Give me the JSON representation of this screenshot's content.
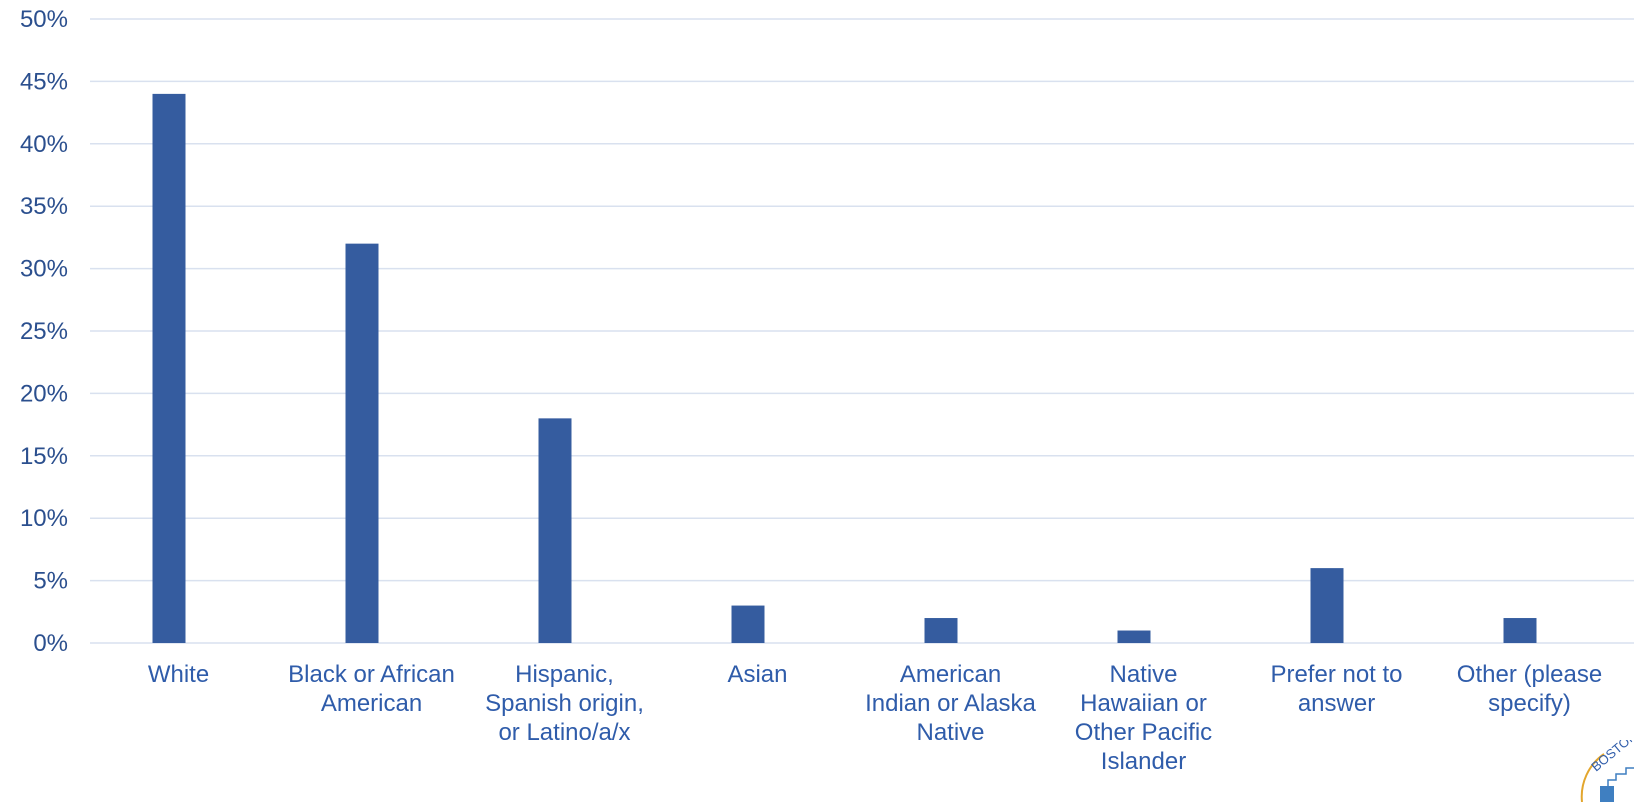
{
  "colors": {
    "bar": "#355c9f",
    "grid": "#d9e1ef",
    "tick_text": "#2b4f8e",
    "label_text": "#2f5caa",
    "logo_ring": "#e3a62d",
    "logo_mark": "#3f7fc1"
  },
  "logo": {
    "text": "BOSTON"
  },
  "chart_data": {
    "type": "bar",
    "categories": [
      [
        "White"
      ],
      [
        "Black or African",
        "American"
      ],
      [
        "Hispanic,",
        "Spanish origin,",
        "or Latino/a/x"
      ],
      [
        "Asian"
      ],
      [
        "American",
        "Indian or Alaska",
        "Native"
      ],
      [
        "Native",
        "Hawaiian or",
        "Other Pacific",
        "Islander"
      ],
      [
        "Prefer not to",
        "answer"
      ],
      [
        "Other (please",
        "specify)"
      ]
    ],
    "values": [
      44,
      32,
      18,
      3,
      2,
      1,
      6,
      2
    ],
    "ylim": [
      0,
      50
    ],
    "yticks": [
      0,
      5,
      10,
      15,
      20,
      25,
      30,
      35,
      40,
      45,
      50
    ],
    "ytick_labels": [
      "0%",
      "5%",
      "10%",
      "15%",
      "20%",
      "25%",
      "30%",
      "35%",
      "40%",
      "45%",
      "50%"
    ],
    "grid": true,
    "legend": false,
    "title": "",
    "xlabel": "",
    "ylabel": ""
  }
}
